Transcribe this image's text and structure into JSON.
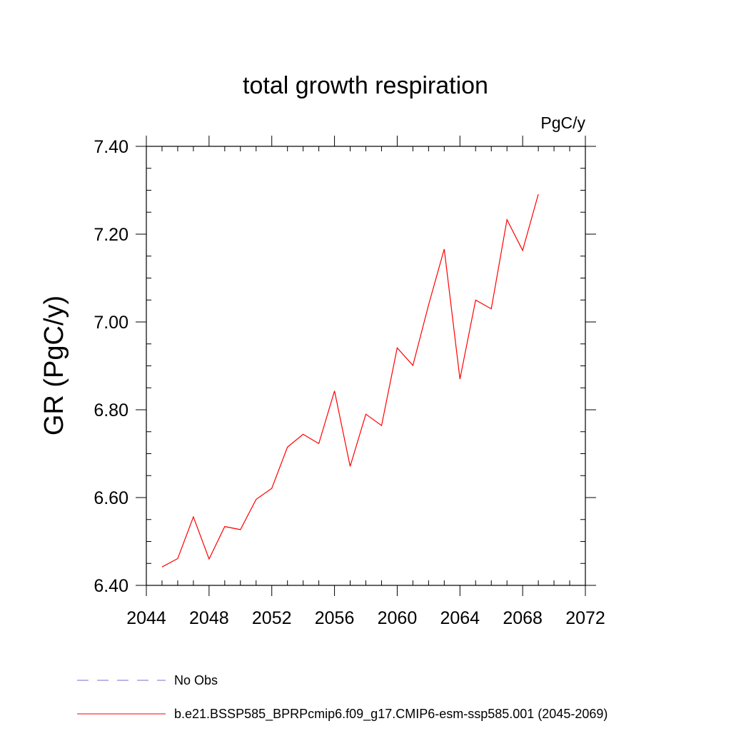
{
  "chart_data": {
    "type": "line",
    "title": "total growth respiration",
    "units_label": "PgC/y",
    "ylabel": "GR  (PgC/y)",
    "xlabel": "",
    "xlim": [
      2044,
      2072
    ],
    "ylim": [
      6.4,
      7.4
    ],
    "x_ticks": [
      "2044",
      "2048",
      "2052",
      "2056",
      "2060",
      "2064",
      "2068",
      "2072"
    ],
    "y_ticks": [
      "6.40",
      "6.60",
      "6.80",
      "7.00",
      "7.20",
      "7.40"
    ],
    "grid": false,
    "legend_position": "bottom",
    "series": [
      {
        "name": "b.e21.BSSP585_BPRPcmip6.f09_g17.CMIP6-esm-ssp585.001 (2045-2069)",
        "color": "#ff0000",
        "line_style": "solid",
        "x": [
          2045,
          2046,
          2047,
          2048,
          2049,
          2050,
          2051,
          2052,
          2053,
          2054,
          2055,
          2056,
          2057,
          2058,
          2059,
          2060,
          2061,
          2062,
          2063,
          2064,
          2065,
          2066,
          2067,
          2068,
          2069
        ],
        "y": [
          6.442,
          6.461,
          6.556,
          6.46,
          6.534,
          6.527,
          6.596,
          6.621,
          6.715,
          6.744,
          6.723,
          6.843,
          6.671,
          6.79,
          6.764,
          6.941,
          6.901,
          7.039,
          7.166,
          6.87,
          7.05,
          7.03,
          7.233,
          7.163,
          7.291
        ]
      }
    ],
    "legend": [
      {
        "label": "No Obs",
        "color": "#7b6fd0",
        "line_style": "dashed"
      },
      {
        "label": "b.e21.BSSP585_BPRPcmip6.f09_g17.CMIP6-esm-ssp585.001 (2045-2069)",
        "color": "#ff0000",
        "line_style": "solid"
      }
    ]
  }
}
